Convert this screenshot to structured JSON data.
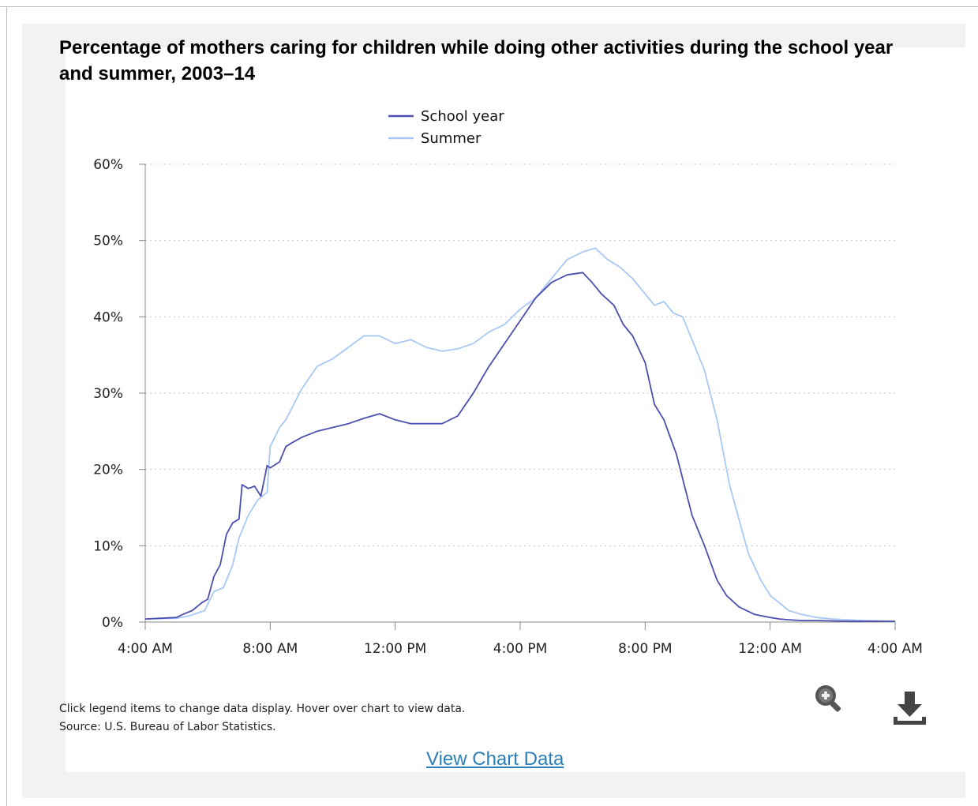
{
  "chart_data": {
    "type": "line",
    "title": "Percentage of mothers caring for children while doing other activities during the school year and summer, 2003–14",
    "x_ticks": [
      "4:00 AM",
      "8:00 AM",
      "12:00 PM",
      "4:00 PM",
      "8:00 PM",
      "12:00 AM",
      "4:00 AM"
    ],
    "y_ticks": [
      "0%",
      "10%",
      "20%",
      "30%",
      "40%",
      "50%",
      "60%"
    ],
    "ylim": [
      0,
      60
    ],
    "xlim": [
      0,
      24
    ],
    "x_unit_note": "hours after 4:00 AM",
    "grid": true,
    "legend_position": "top-center",
    "series": [
      {
        "name": "School year",
        "color": "#4b4fb0",
        "x": [
          0,
          1,
          1.2,
          1.5,
          1.8,
          2,
          2.2,
          2.4,
          2.6,
          2.8,
          3.0,
          3.1,
          3.3,
          3.5,
          3.7,
          3.9,
          4.0,
          4.3,
          4.5,
          4.7,
          5.0,
          5.5,
          6.0,
          6.5,
          7.0,
          7.5,
          8.0,
          8.5,
          9.0,
          9.5,
          10.0,
          10.5,
          11.0,
          11.5,
          12.0,
          12.5,
          13.0,
          13.5,
          14.0,
          14.3,
          14.6,
          15.0,
          15.3,
          15.6,
          16.0,
          16.3,
          16.6,
          17.0,
          17.5,
          17.9,
          18.3,
          18.6,
          19.0,
          19.5,
          20.0,
          20.3,
          20.6,
          21.0,
          21.5,
          22.0,
          22.5,
          23.0,
          23.5,
          24.0
        ],
        "values": [
          0.4,
          0.6,
          1.0,
          1.5,
          2.5,
          3.0,
          6.0,
          7.5,
          11.5,
          13.0,
          13.5,
          18.0,
          17.5,
          17.8,
          16.5,
          20.5,
          20.2,
          21.0,
          23.0,
          23.5,
          24.2,
          25.0,
          25.5,
          26.0,
          26.7,
          27.3,
          26.5,
          26.0,
          26.0,
          26.0,
          27.0,
          30.0,
          33.5,
          36.5,
          39.5,
          42.5,
          44.5,
          45.5,
          45.8,
          44.5,
          43.0,
          41.5,
          39.0,
          37.5,
          34.0,
          28.5,
          26.5,
          22.0,
          14.0,
          10.0,
          5.5,
          3.5,
          2.0,
          1.0,
          0.6,
          0.4,
          0.3,
          0.2,
          0.2,
          0.15,
          0.1,
          0.1,
          0.1,
          0.1
        ]
      },
      {
        "name": "Summer",
        "color": "#a9c8f5",
        "x": [
          0,
          1,
          1.4,
          1.9,
          2.2,
          2.5,
          2.8,
          3.0,
          3.3,
          3.6,
          3.9,
          4.0,
          4.3,
          4.5,
          5.0,
          5.5,
          6.0,
          6.5,
          7.0,
          7.5,
          8.0,
          8.5,
          9.0,
          9.5,
          10.0,
          10.5,
          11.0,
          11.5,
          12.0,
          12.5,
          13.0,
          13.5,
          14.0,
          14.4,
          14.8,
          15.2,
          15.6,
          16.0,
          16.3,
          16.6,
          16.9,
          17.2,
          17.5,
          17.9,
          18.3,
          18.7,
          19.0,
          19.3,
          19.7,
          20.0,
          20.3,
          20.6,
          21.0,
          21.5,
          22.0,
          22.5,
          23.0,
          23.5,
          24.0
        ],
        "values": [
          0.4,
          0.5,
          0.8,
          1.5,
          4.0,
          4.5,
          7.5,
          11.0,
          14.0,
          16.0,
          17.0,
          23.0,
          25.5,
          26.5,
          30.5,
          33.5,
          34.5,
          36.0,
          37.5,
          37.5,
          36.5,
          37.0,
          36.0,
          35.5,
          35.8,
          36.5,
          38.0,
          39.0,
          41.0,
          42.5,
          45.0,
          47.5,
          48.5,
          49.0,
          47.5,
          46.5,
          45.0,
          43.0,
          41.5,
          42.0,
          40.5,
          40.0,
          37.0,
          33.0,
          26.5,
          18.0,
          13.5,
          9.0,
          5.5,
          3.5,
          2.5,
          1.5,
          1.0,
          0.6,
          0.4,
          0.3,
          0.2,
          0.15,
          0.1
        ]
      }
    ]
  },
  "notes": {
    "line1": "Click legend items to change data display. Hover over chart to view data.",
    "line2": "Source: U.S. Bureau of Labor Statistics."
  },
  "icons": {
    "zoom": "zoom-in-icon",
    "download": "download-icon"
  },
  "view_chart_data_label": "View Chart Data"
}
